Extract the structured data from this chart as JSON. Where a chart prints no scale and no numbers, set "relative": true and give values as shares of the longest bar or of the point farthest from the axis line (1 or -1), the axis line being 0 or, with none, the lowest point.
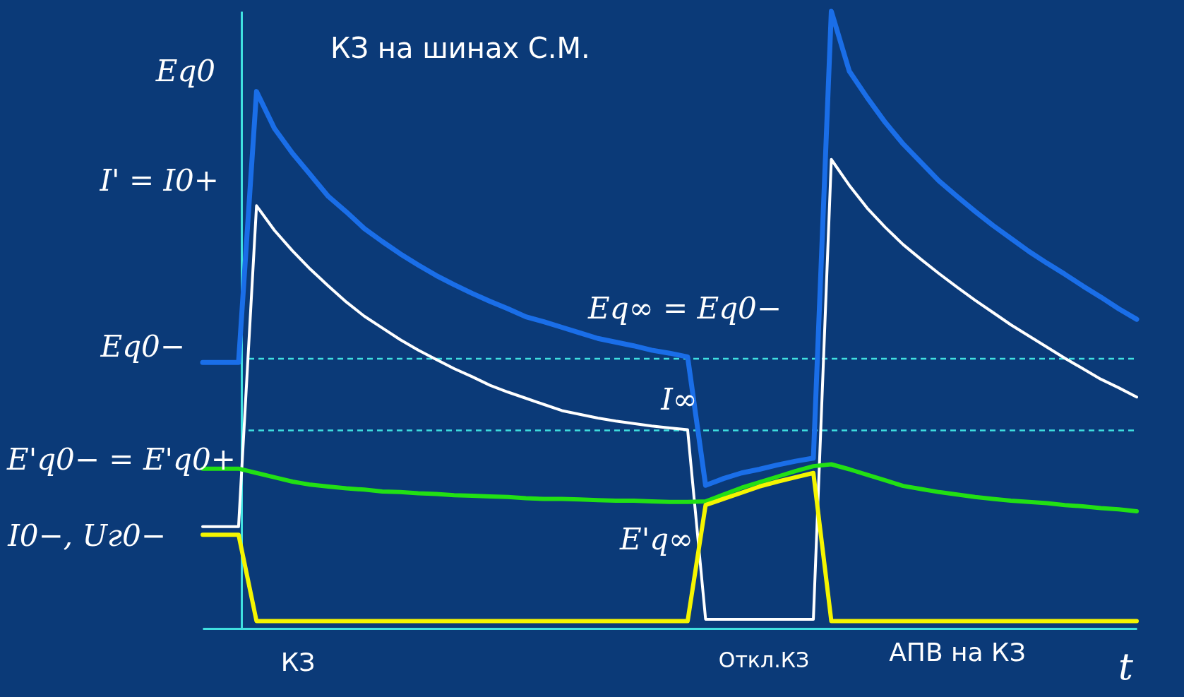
{
  "chart_data": {
    "type": "line",
    "title": "КЗ на шинах С.М.",
    "xlabel": "t",
    "relative": true,
    "grid": false,
    "categories": [
      null,
      null,
      null,
      null,
      null,
      null,
      null,
      null,
      null,
      null,
      null,
      null,
      null,
      null,
      null,
      null,
      null,
      null,
      null,
      null,
      null,
      null,
      null,
      null,
      null,
      null,
      null,
      null,
      null,
      null,
      null,
      null,
      null,
      null,
      null,
      null,
      null,
      null,
      null,
      null,
      null,
      null,
      null,
      null,
      null,
      null,
      null,
      null,
      null,
      null,
      null,
      null,
      null
    ],
    "series": [
      {
        "color": "#1a6ee8",
        "values": [
          0.431,
          0.431,
          0.431,
          0.87,
          0.81,
          0.77,
          0.735,
          0.7,
          0.675,
          0.648,
          0.627,
          0.607,
          0.589,
          0.572,
          0.557,
          0.543,
          0.53,
          0.518,
          0.505,
          0.497,
          0.488,
          0.479,
          0.47,
          0.464,
          0.458,
          0.451,
          0.446,
          0.44,
          0.232,
          0.243,
          0.252,
          0.258,
          0.265,
          0.271,
          0.276,
          1.0,
          0.903,
          0.86,
          0.82,
          0.785,
          0.755,
          0.725,
          0.7,
          0.676,
          0.653,
          0.632,
          0.611,
          0.592,
          0.574,
          0.555,
          0.537,
          0.518,
          0.501
        ]
      },
      {
        "color": "#ffffff",
        "values": [
          0.165,
          0.165,
          0.165,
          0.685,
          0.645,
          0.612,
          0.582,
          0.555,
          0.529,
          0.506,
          0.487,
          0.468,
          0.451,
          0.436,
          0.421,
          0.408,
          0.394,
          0.383,
          0.373,
          0.363,
          0.353,
          0.347,
          0.341,
          0.336,
          0.332,
          0.328,
          0.325,
          0.322,
          0.015,
          0.015,
          0.015,
          0.015,
          0.015,
          0.015,
          0.015,
          0.76,
          0.718,
          0.681,
          0.65,
          0.622,
          0.598,
          0.575,
          0.553,
          0.532,
          0.512,
          0.492,
          0.474,
          0.456,
          0.438,
          0.421,
          0.404,
          0.39,
          0.375
        ]
      },
      {
        "color": "#22e014",
        "values": [
          0.259,
          0.259,
          0.259,
          0.252,
          0.245,
          0.238,
          0.233,
          0.23,
          0.227,
          0.225,
          0.222,
          0.221,
          0.219,
          0.218,
          0.216,
          0.215,
          0.214,
          0.213,
          0.211,
          0.21,
          0.21,
          0.209,
          0.208,
          0.207,
          0.207,
          0.206,
          0.205,
          0.205,
          0.206,
          0.217,
          0.228,
          0.237,
          0.246,
          0.255,
          0.263,
          0.266,
          0.258,
          0.249,
          0.24,
          0.231,
          0.226,
          0.221,
          0.217,
          0.213,
          0.21,
          0.207,
          0.205,
          0.203,
          0.2,
          0.198,
          0.195,
          0.193,
          0.19
        ]
      },
      {
        "color": "#f5f500",
        "values": [
          0.152,
          0.152,
          0.152,
          0.012,
          0.012,
          0.012,
          0.012,
          0.012,
          0.012,
          0.012,
          0.012,
          0.012,
          0.012,
          0.012,
          0.012,
          0.012,
          0.012,
          0.012,
          0.012,
          0.012,
          0.012,
          0.012,
          0.012,
          0.012,
          0.012,
          0.012,
          0.012,
          0.012,
          0.2,
          0.21,
          0.22,
          0.23,
          0.238,
          0.245,
          0.252,
          0.012,
          0.012,
          0.012,
          0.012,
          0.012,
          0.012,
          0.012,
          0.012,
          0.012,
          0.012,
          0.012,
          0.012,
          0.012,
          0.012,
          0.012,
          0.012,
          0.012,
          0.012
        ]
      }
    ],
    "ref_lines": [
      {
        "axis": "y",
        "value": 0.437,
        "color": "#40e0e0",
        "line_style": "dashed"
      },
      {
        "axis": "y",
        "value": 0.321,
        "color": "#40e0e0",
        "line_style": "dashed"
      }
    ],
    "annotations": [
      "Eq0",
      "I' = I0+",
      "Eq0−",
      "E'q0− = E'q0+",
      "I0−, Uг0−",
      "Eq∞ = Eq0−",
      "I∞",
      "E'q∞",
      "КЗ",
      "Откл.КЗ",
      "АПВ на КЗ"
    ]
  }
}
